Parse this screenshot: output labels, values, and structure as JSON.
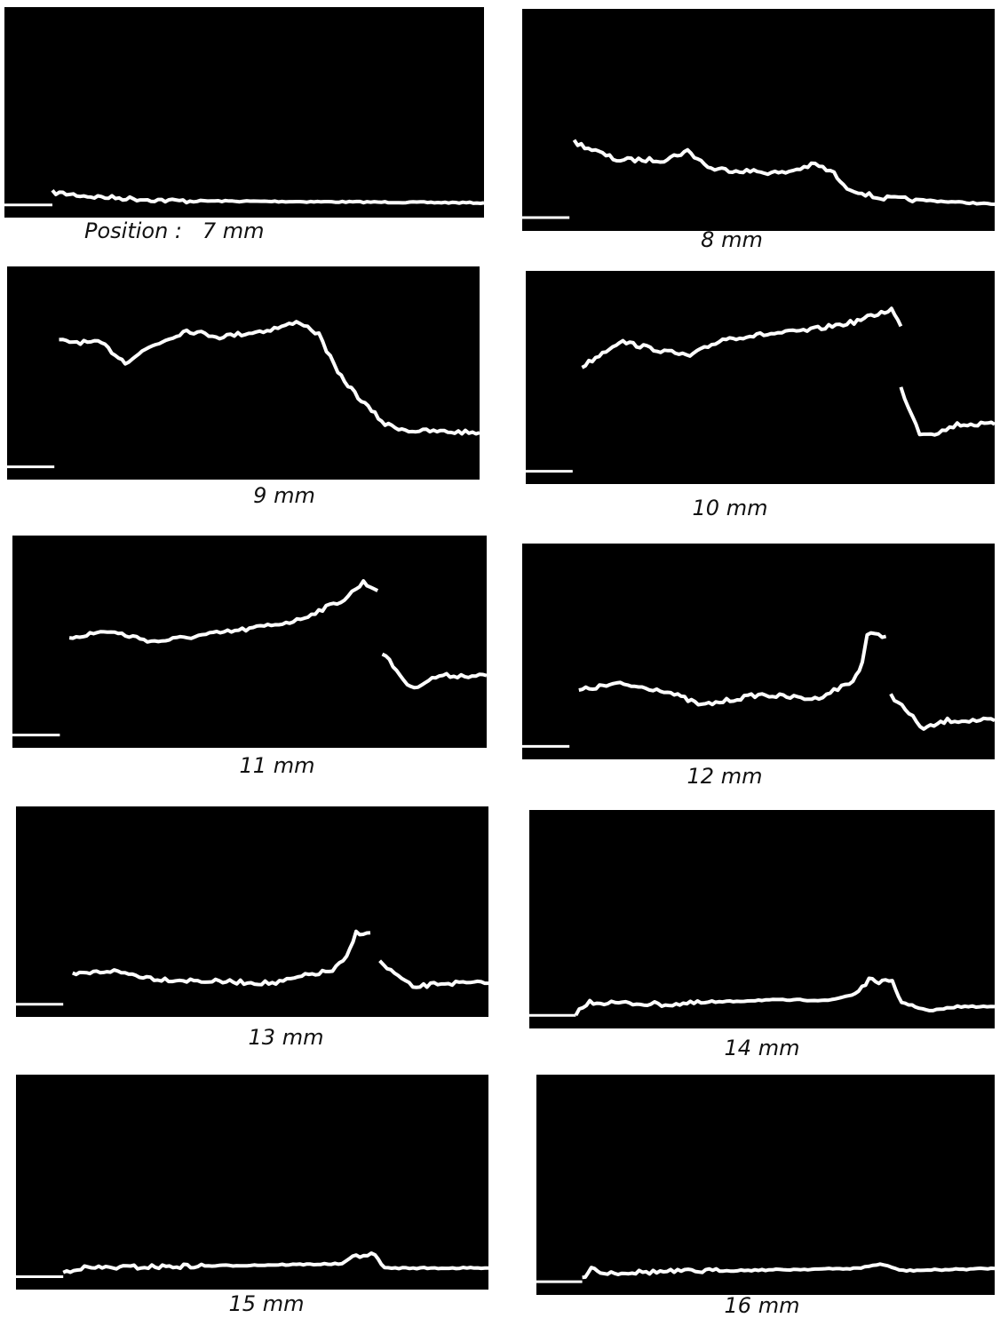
{
  "panels": [
    {
      "label": "Position :   7 mm"
    },
    {
      "label": "8 mm"
    },
    {
      "label": "9 mm"
    },
    {
      "label": "10 mm"
    },
    {
      "label": "11 mm"
    },
    {
      "label": "12 mm"
    },
    {
      "label": "13 mm"
    },
    {
      "label": "14 mm"
    },
    {
      "label": "15 mm"
    },
    {
      "label": "16 mm"
    }
  ]
}
